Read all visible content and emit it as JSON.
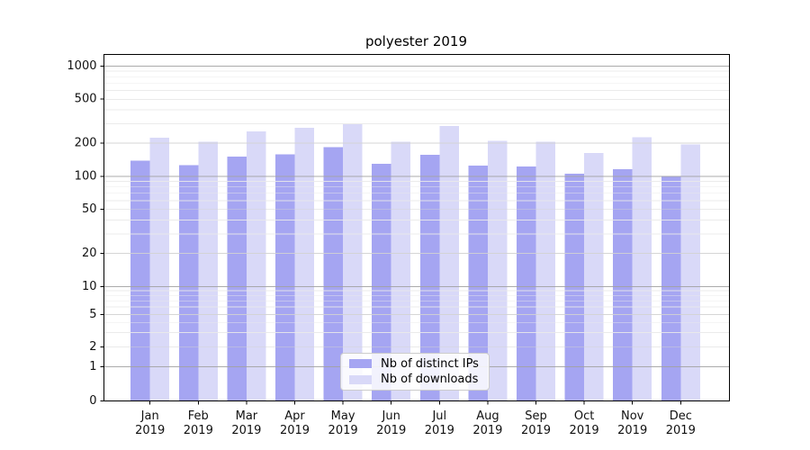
{
  "chart_data": {
    "type": "bar",
    "title": "polyester 2019",
    "categories": [
      "Jan",
      "Feb",
      "Mar",
      "Apr",
      "May",
      "Jun",
      "Jul",
      "Aug",
      "Sep",
      "Oct",
      "Nov",
      "Dec"
    ],
    "category_year": "2019",
    "series": [
      {
        "name": "Nb of distinct IPs",
        "color": "#a5a5f2",
        "values": [
          138,
          126,
          150,
          158,
          183,
          130,
          157,
          125,
          122,
          105,
          116,
          100
        ]
      },
      {
        "name": "Nb of downloads",
        "color": "#d9d9f8",
        "values": [
          224,
          205,
          254,
          274,
          295,
          205,
          285,
          209,
          205,
          163,
          225,
          195
        ]
      }
    ],
    "xlabel": "",
    "ylabel": "",
    "y_axis": {
      "scale": "symlog",
      "tick_values": [
        0,
        1,
        2,
        5,
        10,
        20,
        50,
        100,
        200,
        500,
        1000
      ],
      "ylim": [
        0,
        1300
      ]
    },
    "grid": "horizontal major+minor",
    "legend_position": "lower center"
  },
  "colors": {
    "major_grid": "#a2a2a2",
    "mid_grid": "#d2d2d2",
    "minor_grid": "#e9e9e9",
    "axis": "#000000",
    "tick_text": "#111111"
  }
}
